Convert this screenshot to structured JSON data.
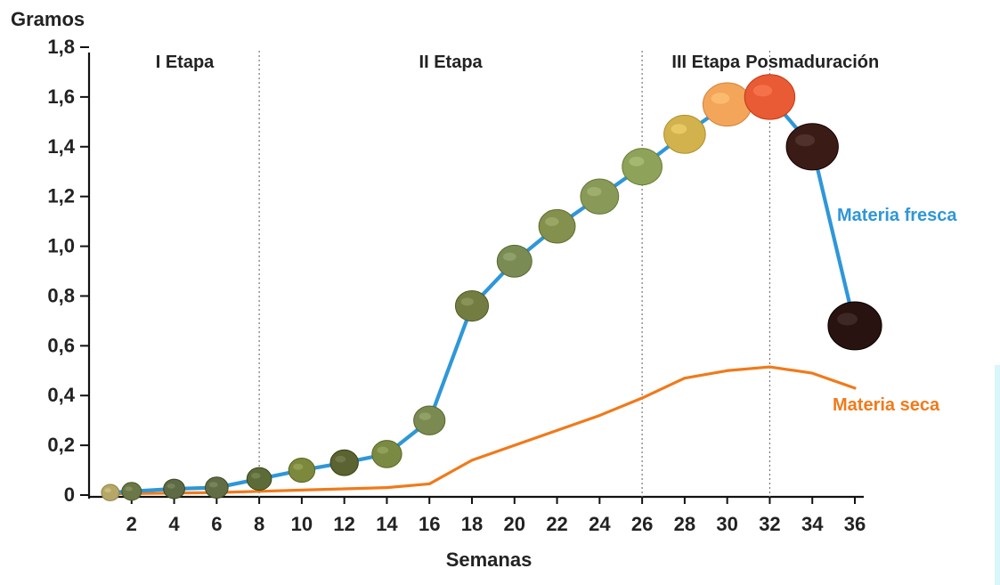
{
  "chart_data": {
    "type": "line",
    "title": "",
    "xlabel": "Semanas",
    "ylabel": "Gramos",
    "xlim": [
      0,
      36
    ],
    "ylim": [
      0,
      1.8
    ],
    "grid": false,
    "legend": "inline-right",
    "x_ticks": [
      "2",
      "4",
      "6",
      "8",
      "10",
      "12",
      "14",
      "16",
      "18",
      "20",
      "22",
      "24",
      "26",
      "28",
      "30",
      "32",
      "34",
      "36"
    ],
    "y_ticks": [
      "0",
      "0,2",
      "0,4",
      "0,6",
      "0,8",
      "1,0",
      "1,2",
      "1,4",
      "1,6",
      "1,8"
    ],
    "stage_boundaries": [
      8,
      26,
      32
    ],
    "stage_labels": [
      {
        "label": "I Etapa",
        "x": 4.5
      },
      {
        "label": "II Etapa",
        "x": 17
      },
      {
        "label": "III Etapa",
        "x": 29
      },
      {
        "label": "Posmaduración",
        "x": 34
      }
    ],
    "series": [
      {
        "name": "Materia fresca",
        "color": "#2f97d8",
        "x": [
          1,
          2,
          4,
          6,
          8,
          10,
          12,
          14,
          16,
          18,
          20,
          22,
          24,
          26,
          28,
          30,
          32,
          34,
          36
        ],
        "values": [
          0.01,
          0.015,
          0.025,
          0.03,
          0.065,
          0.1,
          0.13,
          0.165,
          0.3,
          0.76,
          0.94,
          1.08,
          1.2,
          1.32,
          1.45,
          1.57,
          1.6,
          1.4,
          0.68
        ]
      },
      {
        "name": "Materia seca",
        "color": "#f07a1a",
        "x": [
          1,
          2,
          4,
          6,
          8,
          10,
          12,
          14,
          16,
          18,
          20,
          22,
          24,
          26,
          28,
          30,
          32,
          34,
          36
        ],
        "values": [
          0.005,
          0.006,
          0.008,
          0.01,
          0.015,
          0.02,
          0.025,
          0.03,
          0.045,
          0.14,
          0.2,
          0.26,
          0.32,
          0.39,
          0.47,
          0.5,
          0.515,
          0.49,
          0.43
        ]
      }
    ],
    "fruit_markers": [
      {
        "x": 1,
        "y": 0.01,
        "color": "#b5a768"
      },
      {
        "x": 2,
        "y": 0.015,
        "color": "#6c7748"
      },
      {
        "x": 4,
        "y": 0.025,
        "color": "#5d6a43"
      },
      {
        "x": 6,
        "y": 0.03,
        "color": "#616d45"
      },
      {
        "x": 8,
        "y": 0.065,
        "color": "#5d6b38"
      },
      {
        "x": 10,
        "y": 0.1,
        "color": "#7c893d"
      },
      {
        "x": 12,
        "y": 0.13,
        "color": "#5a6331"
      },
      {
        "x": 14,
        "y": 0.165,
        "color": "#7b8a43"
      },
      {
        "x": 16,
        "y": 0.3,
        "color": "#7a8a50"
      },
      {
        "x": 18,
        "y": 0.76,
        "color": "#737d42"
      },
      {
        "x": 20,
        "y": 0.94,
        "color": "#7a8b54"
      },
      {
        "x": 22,
        "y": 1.08,
        "color": "#83904e"
      },
      {
        "x": 24,
        "y": 1.2,
        "color": "#889958"
      },
      {
        "x": 26,
        "y": 1.32,
        "color": "#8ea25a"
      },
      {
        "x": 28,
        "y": 1.45,
        "color": "#d1b24d"
      },
      {
        "x": 30,
        "y": 1.57,
        "color": "#f3a55a"
      },
      {
        "x": 32,
        "y": 1.6,
        "color": "#e85b34"
      },
      {
        "x": 34,
        "y": 1.4,
        "color": "#3b1b16"
      },
      {
        "x": 36,
        "y": 0.68,
        "color": "#281310"
      }
    ],
    "ylabel_position": "top-left",
    "xlabel_position": "bottom-center"
  }
}
